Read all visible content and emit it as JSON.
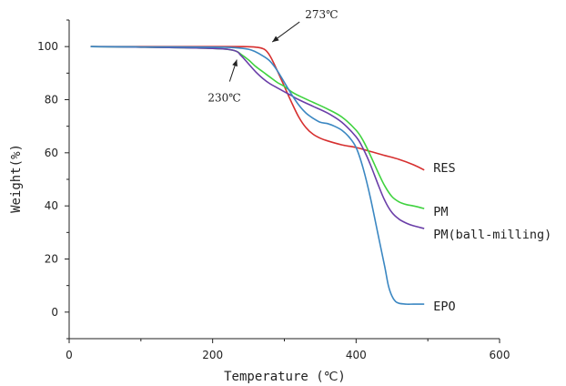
{
  "chart_data": {
    "type": "line",
    "xlabel": "Temperature (℃)",
    "ylabel": "Weight(%)",
    "xlim": [
      0,
      600
    ],
    "ylim": [
      -10,
      110
    ],
    "x_ticks": [
      "0",
      "200",
      "400",
      "600"
    ],
    "y_ticks": [
      "0",
      "20",
      "40",
      "60",
      "80",
      "100"
    ],
    "grid": false,
    "series": [
      {
        "name": "RES",
        "color": "#d62f2f",
        "x": [
          30,
          100,
          200,
          240,
          260,
          272,
          280,
          290,
          300,
          310,
          320,
          330,
          340,
          350,
          360,
          380,
          400,
          420,
          440,
          460,
          480,
          495
        ],
        "y": [
          100,
          100,
          100,
          100,
          99.8,
          99,
          96.5,
          91,
          85,
          79,
          73.5,
          69.5,
          67,
          65.5,
          64.5,
          63,
          62,
          60.5,
          59,
          57.5,
          55.5,
          53.5
        ]
      },
      {
        "name": "PM",
        "color": "#3fd23f",
        "x": [
          30,
          100,
          200,
          230,
          240,
          250,
          260,
          270,
          280,
          290,
          300,
          310,
          320,
          340,
          360,
          380,
          400,
          410,
          420,
          430,
          440,
          450,
          460,
          470,
          480,
          495
        ],
        "y": [
          100,
          99.8,
          99.3,
          98.5,
          97,
          95,
          92.5,
          90.5,
          88.5,
          86.5,
          85,
          83,
          81.5,
          79,
          76.5,
          73.5,
          68.5,
          64.5,
          59,
          53,
          47.5,
          43.5,
          41.5,
          40.5,
          40,
          39
        ]
      },
      {
        "name": "PM(ball-milling)",
        "color": "#6a3ea8",
        "x": [
          30,
          100,
          200,
          230,
          240,
          250,
          260,
          270,
          280,
          290,
          300,
          310,
          320,
          340,
          360,
          380,
          400,
          410,
          420,
          430,
          440,
          450,
          460,
          470,
          480,
          495
        ],
        "y": [
          100,
          99.8,
          99.3,
          98.5,
          96.5,
          93.5,
          90.5,
          88,
          86,
          84.5,
          83,
          81.5,
          80,
          77.5,
          75,
          71.5,
          66,
          61.5,
          55.5,
          48.5,
          42,
          37.5,
          35,
          33.5,
          32.5,
          31.5
        ]
      },
      {
        "name": "EPO",
        "color": "#3b87c2",
        "x": [
          30,
          100,
          200,
          230,
          250,
          260,
          270,
          280,
          290,
          300,
          310,
          320,
          330,
          340,
          350,
          360,
          370,
          380,
          390,
          400,
          410,
          420,
          430,
          440,
          445,
          450,
          455,
          460,
          470,
          480,
          495
        ],
        "y": [
          100,
          99.9,
          99.8,
          99.6,
          99,
          98,
          96.5,
          94.5,
          91,
          86.5,
          82,
          78,
          75,
          73,
          71.5,
          71,
          70,
          68.5,
          66,
          62,
          54,
          43,
          30,
          17,
          10,
          6,
          4,
          3.3,
          3,
          3,
          3
        ]
      }
    ],
    "annotations": [
      {
        "text": "273℃",
        "x": 273,
        "y": 99
      },
      {
        "text": "230℃",
        "x": 230,
        "y": 98.5
      }
    ]
  }
}
